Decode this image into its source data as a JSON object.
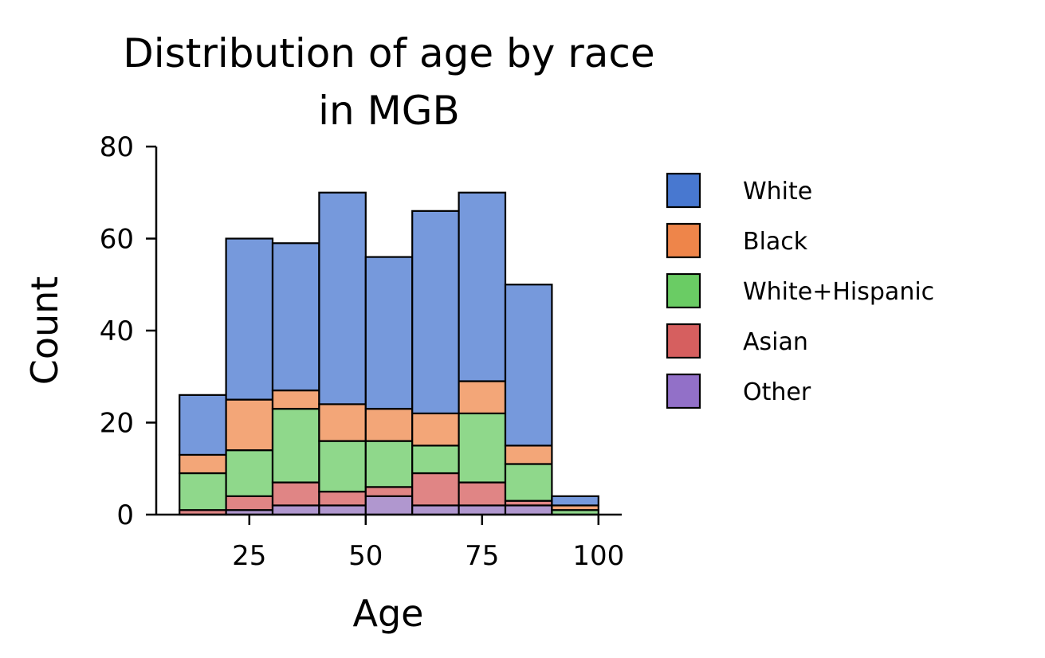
{
  "chart_data": {
    "type": "bar",
    "stacked": true,
    "title": "Distribution of age by race",
    "subtitle": "in MGB",
    "xlabel": "Age",
    "ylabel": "Count",
    "xlim": [
      5,
      105
    ],
    "ylim": [
      0,
      80
    ],
    "xticks": [
      "25",
      "50",
      "75",
      "100"
    ],
    "xtick_values": [
      25,
      50,
      75,
      100
    ],
    "yticks": [
      "0",
      "20",
      "40",
      "60",
      "80"
    ],
    "ytick_values": [
      0,
      20,
      40,
      60,
      80
    ],
    "bin_edges": [
      10,
      20,
      30,
      40,
      50,
      60,
      70,
      80,
      90,
      100
    ],
    "legend_position": "right",
    "series": [
      {
        "name": "Other",
        "color": "#9270c8",
        "fill": "#b097cf",
        "values": [
          0,
          1,
          2,
          2,
          4,
          2,
          2,
          2,
          0
        ]
      },
      {
        "name": "Asian",
        "color": "#d65f5f",
        "fill": "#e08585",
        "values": [
          1,
          3,
          5,
          3,
          2,
          7,
          5,
          1,
          0
        ]
      },
      {
        "name": "White+Hispanic",
        "color": "#6acc64",
        "fill": "#8fd88b",
        "values": [
          8,
          10,
          16,
          11,
          10,
          6,
          15,
          8,
          1
        ]
      },
      {
        "name": "Black",
        "color": "#ee854a",
        "fill": "#f3a678",
        "values": [
          4,
          11,
          4,
          8,
          7,
          7,
          7,
          4,
          1
        ]
      },
      {
        "name": "White",
        "color": "#4878d0",
        "fill": "#7699dc",
        "values": [
          13,
          35,
          32,
          46,
          33,
          44,
          41,
          35,
          2
        ]
      }
    ],
    "legend_order": [
      "White",
      "Black",
      "White+Hispanic",
      "Asian",
      "Other"
    ]
  }
}
